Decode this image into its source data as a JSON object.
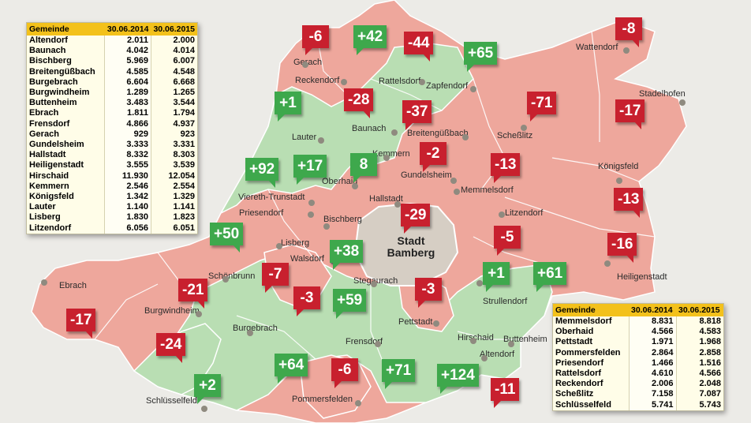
{
  "city": {
    "line1": "Stadt",
    "line2": "Bamberg"
  },
  "table_left": {
    "headers": [
      "Gemeinde",
      "30.06.2014",
      "30.06.2015"
    ],
    "rows": [
      [
        "Altendorf",
        "2.011",
        "2.000"
      ],
      [
        "Baunach",
        "4.042",
        "4.014"
      ],
      [
        "Bischberg",
        "5.969",
        "6.007"
      ],
      [
        "Breitengüßbach",
        "4.585",
        "4.548"
      ],
      [
        "Burgebrach",
        "6.604",
        "6.668"
      ],
      [
        "Burgwindheim",
        "1.289",
        "1.265"
      ],
      [
        "Buttenheim",
        "3.483",
        "3.544"
      ],
      [
        "Ebrach",
        "1.811",
        "1.794"
      ],
      [
        "Frensdorf",
        "4.866",
        "4.937"
      ],
      [
        "Gerach",
        "929",
        "923"
      ],
      [
        "Gundelsheim",
        "3.333",
        "3.331"
      ],
      [
        "Hallstadt",
        "8.332",
        "8.303"
      ],
      [
        "Heiligenstadt",
        "3.555",
        "3.539"
      ],
      [
        "Hirschaid",
        "11.930",
        "12.054"
      ],
      [
        "Kemmern",
        "2.546",
        "2.554"
      ],
      [
        "Königsfeld",
        "1.342",
        "1.329"
      ],
      [
        "Lauter",
        "1.140",
        "1.141"
      ],
      [
        "Lisberg",
        "1.830",
        "1.823"
      ],
      [
        "Litzendorf",
        "6.056",
        "6.051"
      ]
    ]
  },
  "table_right": {
    "headers": [
      "Gemeinde",
      "30.06.2014",
      "30.06.2015"
    ],
    "rows": [
      [
        "Memmelsdorf",
        "8.831",
        "8.818"
      ],
      [
        "Oberhaid",
        "4.566",
        "4.583"
      ],
      [
        "Pettstadt",
        "1.971",
        "1.968"
      ],
      [
        "Pommersfelden",
        "2.864",
        "2.858"
      ],
      [
        "Priesendorf",
        "1.466",
        "1.516"
      ],
      [
        "Rattelsdorf",
        "4.610",
        "4.566"
      ],
      [
        "Reckendorf",
        "2.006",
        "2.048"
      ],
      [
        "Scheßlitz",
        "7.158",
        "7.087"
      ],
      [
        "Schlüsselfeld",
        "5.741",
        "5.743"
      ]
    ]
  },
  "places": [
    "Gerach",
    "Reckendorf",
    "Rattelsdorf",
    "Zapfendorf",
    "Wattendorf",
    "Stadelhofen",
    "Lauter",
    "Baunach",
    "Breitengüßbach",
    "Scheßlitz",
    "Kemmern",
    "Gundelsheim",
    "Königsfeld",
    "Viereth-Trunstadt",
    "Oberhaid",
    "Hallstadt",
    "Memmelsdorf",
    "Priesendorf",
    "Bischberg",
    "Litzendorf",
    "Lisberg",
    "Walsdorf",
    "Schönbrunn",
    "Stegaurach",
    "Heiligenstadt",
    "Ebrach",
    "Strullendorf",
    "Burgwindheim",
    "Burgebrach",
    "Pettstadt",
    "Hirschaid",
    "Buttenheim",
    "Altendorf",
    "Frensdorf",
    "Pommersfelden",
    "Schlüsselfeld"
  ],
  "changes": [
    "-6",
    "+42",
    "-44",
    "+65",
    "-8",
    "+1",
    "-28",
    "-37",
    "-71",
    "-17",
    "-2",
    "+92",
    "+17",
    "8",
    "-13",
    "-13",
    "-29",
    "-5",
    "+50",
    "+38",
    "-16",
    "-7",
    "-3",
    "-21",
    "+59",
    "-3",
    "+1",
    "+61",
    "-17",
    "-24",
    "+64",
    "-6",
    "+71",
    "+124",
    "-11",
    "+2"
  ],
  "colors": {
    "decline": "#c8202e",
    "growth": "#3ea84c",
    "decline_area": "#eea79c",
    "growth_area": "#b9deb3",
    "city_area": "#d6cec4",
    "table_header": "#f3c11b"
  }
}
